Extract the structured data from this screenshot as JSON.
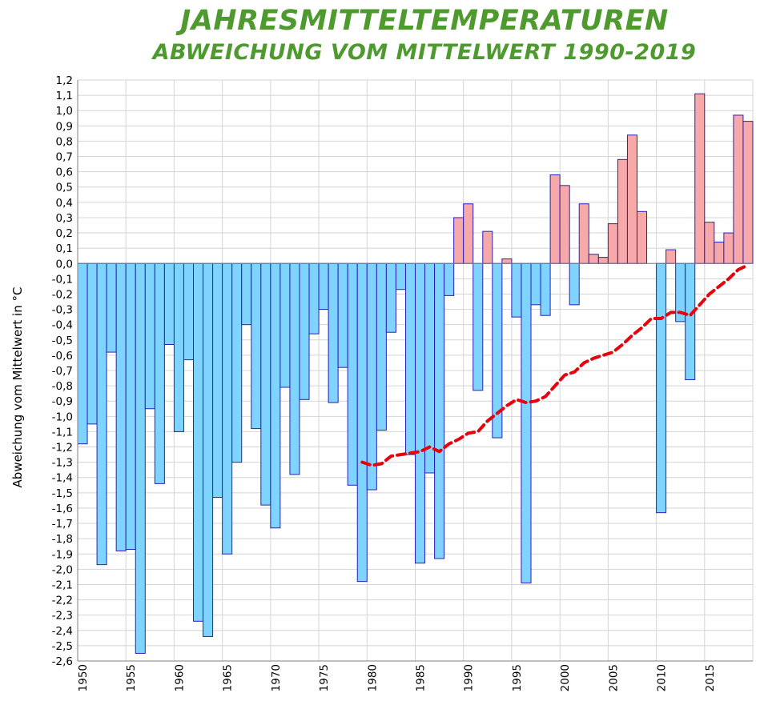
{
  "chart_data": {
    "type": "bar",
    "title": "JAHRESMITTELTEMPERATUREN",
    "subtitle": "ABWEICHUNG VOM MITTELWERT  1990-2019",
    "ylabel": "Abweichung vom Mittelwert in  °C",
    "xlabel": "",
    "ylim": [
      -2.6,
      1.2
    ],
    "ystep": 0.1,
    "xlim": [
      1950,
      2019
    ],
    "x_tick_labels": [
      "1950",
      "1955",
      "1960",
      "1965",
      "1970",
      "1975",
      "1980",
      "1985",
      "1990",
      "1995",
      "2000",
      "2005",
      "2010",
      "2015"
    ],
    "grid": true,
    "colors": {
      "positive": "#f7a8a8",
      "negative": "#7fd4ff",
      "bar_edge": "#2a1fbf",
      "trend": "#e8000b",
      "title": "#4e9a2f"
    },
    "series": [
      {
        "type": "bar",
        "x": [
          1950,
          1951,
          1952,
          1953,
          1954,
          1955,
          1956,
          1957,
          1958,
          1959,
          1960,
          1961,
          1962,
          1963,
          1964,
          1965,
          1966,
          1967,
          1968,
          1969,
          1970,
          1971,
          1972,
          1973,
          1974,
          1975,
          1976,
          1977,
          1978,
          1979,
          1980,
          1981,
          1982,
          1983,
          1984,
          1985,
          1986,
          1987,
          1988,
          1989,
          1990,
          1991,
          1992,
          1993,
          1994,
          1995,
          1996,
          1997,
          1998,
          1999,
          2000,
          2001,
          2002,
          2003,
          2004,
          2005,
          2006,
          2007,
          2008,
          2009,
          2010,
          2011,
          2012,
          2013,
          2014,
          2015,
          2016,
          2017,
          2018,
          2019
        ],
        "values": [
          -1.18,
          -1.05,
          -1.97,
          -0.58,
          -1.88,
          -1.87,
          -2.55,
          -0.95,
          -1.44,
          -0.53,
          -1.1,
          -0.63,
          -2.34,
          -2.44,
          -1.53,
          -1.9,
          -1.3,
          -0.4,
          -1.08,
          -1.58,
          -1.73,
          -0.81,
          -1.38,
          -0.89,
          -0.46,
          -0.3,
          -0.91,
          -0.68,
          -1.45,
          -2.08,
          -1.48,
          -1.09,
          -0.45,
          -0.17,
          -1.25,
          -1.96,
          -1.37,
          -1.93,
          -0.21,
          0.3,
          0.39,
          -0.83,
          0.21,
          -1.14,
          0.03,
          -0.35,
          -2.09,
          -0.27,
          -0.34,
          0.58,
          0.51,
          -0.27,
          0.39,
          0.06,
          0.04,
          0.26,
          0.68,
          0.84,
          0.34,
          0.0,
          -1.63,
          0.09,
          -0.38,
          -0.76,
          1.11,
          0.27,
          0.14,
          0.2,
          0.97,
          0.93
        ]
      },
      {
        "type": "line",
        "style": "dashed",
        "x": [
          1979,
          1980,
          1981,
          1982,
          1983,
          1984,
          1985,
          1986,
          1987,
          1988,
          1989,
          1990,
          1991,
          1992,
          1993,
          1994,
          1995,
          1996,
          1997,
          1998,
          1999,
          2000,
          2001,
          2002,
          2003,
          2004,
          2005,
          2006,
          2007,
          2008,
          2009,
          2010,
          2011,
          2012,
          2013,
          2014,
          2015,
          2016,
          2017,
          2018,
          2019
        ],
        "values": [
          -1.3,
          -1.32,
          -1.31,
          -1.26,
          -1.25,
          -1.24,
          -1.23,
          -1.2,
          -1.23,
          -1.18,
          -1.15,
          -1.11,
          -1.1,
          -1.03,
          -0.98,
          -0.93,
          -0.89,
          -0.91,
          -0.9,
          -0.87,
          -0.8,
          -0.73,
          -0.71,
          -0.65,
          -0.62,
          -0.6,
          -0.58,
          -0.53,
          -0.47,
          -0.42,
          -0.36,
          -0.36,
          -0.32,
          -0.32,
          -0.34,
          -0.27,
          -0.2,
          -0.15,
          -0.1,
          -0.04,
          -0.01
        ]
      }
    ]
  }
}
